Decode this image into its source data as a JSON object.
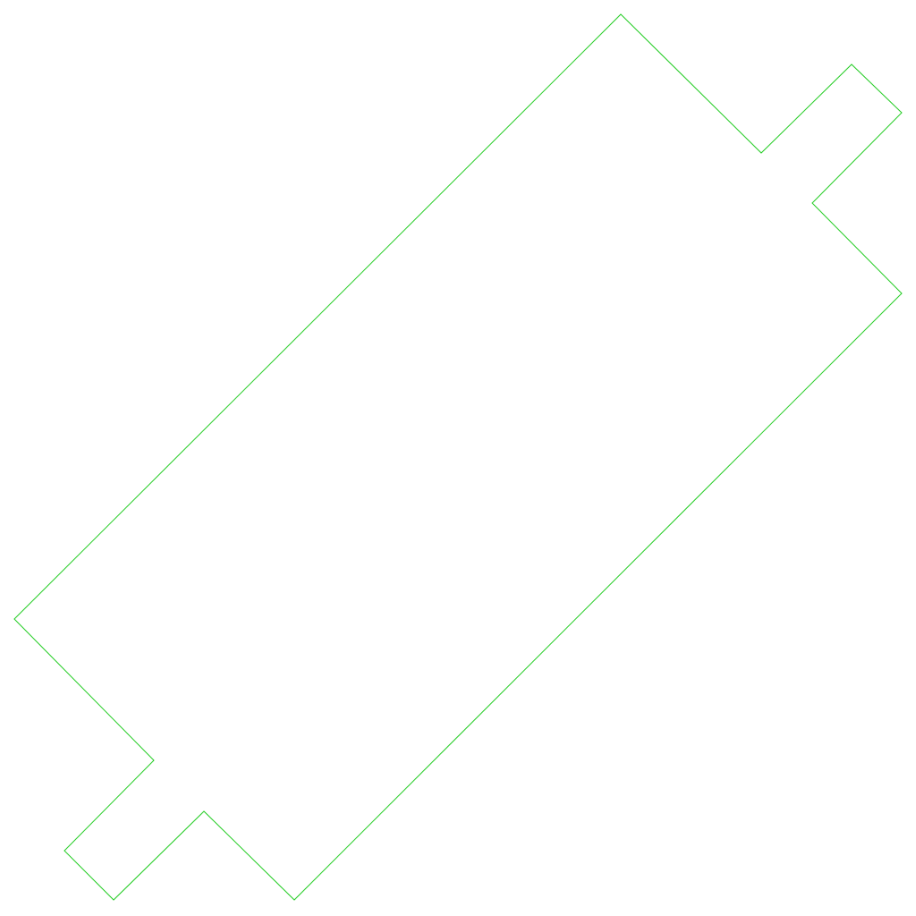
{
  "shape": {
    "kind": "closed-outline",
    "stroke_color": "#22cc22",
    "fill_color": "none",
    "background_color": "#ffffff"
  }
}
